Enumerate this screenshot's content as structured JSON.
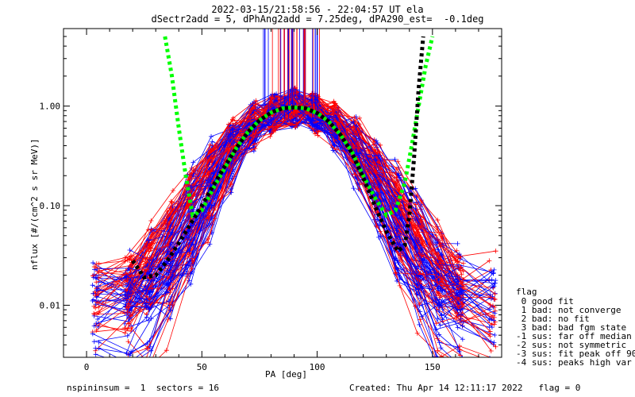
{
  "title_line1": "2022-03-15/21:58:56 - 22:04:57 UT ela",
  "title_line2": "dSectr2add = 5, dPhAng2add = 7.25deg, dPA290_est=  -0.1deg",
  "footer_left": "nspininsum =  1  sectors = 16",
  "footer_right": "Created: Thu Apr 14 12:11:17 2022   flag = 0",
  "legend": {
    "title": "flag",
    "items": [
      " 0 good fit",
      " 1 bad: not converge",
      " 2 bad: no fit",
      " 3 bad: bad fgm state",
      "-1 sus: far off median",
      "-2 sus: not symmetric",
      "-3 sus: fit peak off 90",
      "-4 sus: peaks high var"
    ]
  },
  "colors": {
    "red_traces": "#ff0000",
    "blue_traces": "#0000ff",
    "green_fit": "#00ff00",
    "black_fit": "#000000"
  },
  "chart_data": {
    "type": "line",
    "xlabel": "PA [deg]",
    "ylabel": "nflux [#/(cm^2 s sr MeV)]",
    "xlim": [
      -10,
      180
    ],
    "ylim": [
      0.003,
      6.0
    ],
    "yscale": "log",
    "xticks": [
      0,
      50,
      100,
      150
    ],
    "xtick_labels": [
      "0",
      "50",
      "100",
      "150"
    ],
    "yticks": [
      0.01,
      0.1,
      1.0
    ],
    "ytick_labels": [
      "0.01",
      "0.10",
      "1.00"
    ],
    "series": [
      {
        "color": "#00ff00",
        "style": "dotted-thick",
        "x": [
          34,
          37,
          40,
          43,
          46,
          50,
          55,
          60,
          65,
          70,
          75,
          80,
          85,
          90,
          95,
          100,
          105,
          110,
          115,
          120,
          125,
          130,
          134,
          138,
          141,
          144,
          147,
          150
        ],
        "y": [
          5.0,
          2.0,
          0.6,
          0.2,
          0.08,
          0.09,
          0.15,
          0.24,
          0.38,
          0.55,
          0.72,
          0.86,
          0.95,
          0.97,
          0.95,
          0.85,
          0.7,
          0.52,
          0.35,
          0.2,
          0.12,
          0.08,
          0.09,
          0.17,
          0.4,
          1.0,
          2.5,
          5.0
        ]
      },
      {
        "color": "#000000",
        "style": "dotted-thick",
        "x": [
          20,
          25,
          30,
          35,
          40,
          45,
          50,
          55,
          60,
          65,
          70,
          75,
          80,
          85,
          90,
          95,
          100,
          105,
          110,
          115,
          120,
          125,
          130,
          135,
          138,
          140,
          142,
          144,
          146
        ],
        "y": [
          0.028,
          0.019,
          0.02,
          0.028,
          0.042,
          0.065,
          0.1,
          0.16,
          0.25,
          0.38,
          0.55,
          0.72,
          0.86,
          0.95,
          0.97,
          0.95,
          0.85,
          0.7,
          0.52,
          0.34,
          0.19,
          0.1,
          0.055,
          0.035,
          0.04,
          0.08,
          0.3,
          1.5,
          5.0
        ]
      }
    ],
    "traces_description_counts": {
      "blue": 60,
      "red": 60
    }
  }
}
